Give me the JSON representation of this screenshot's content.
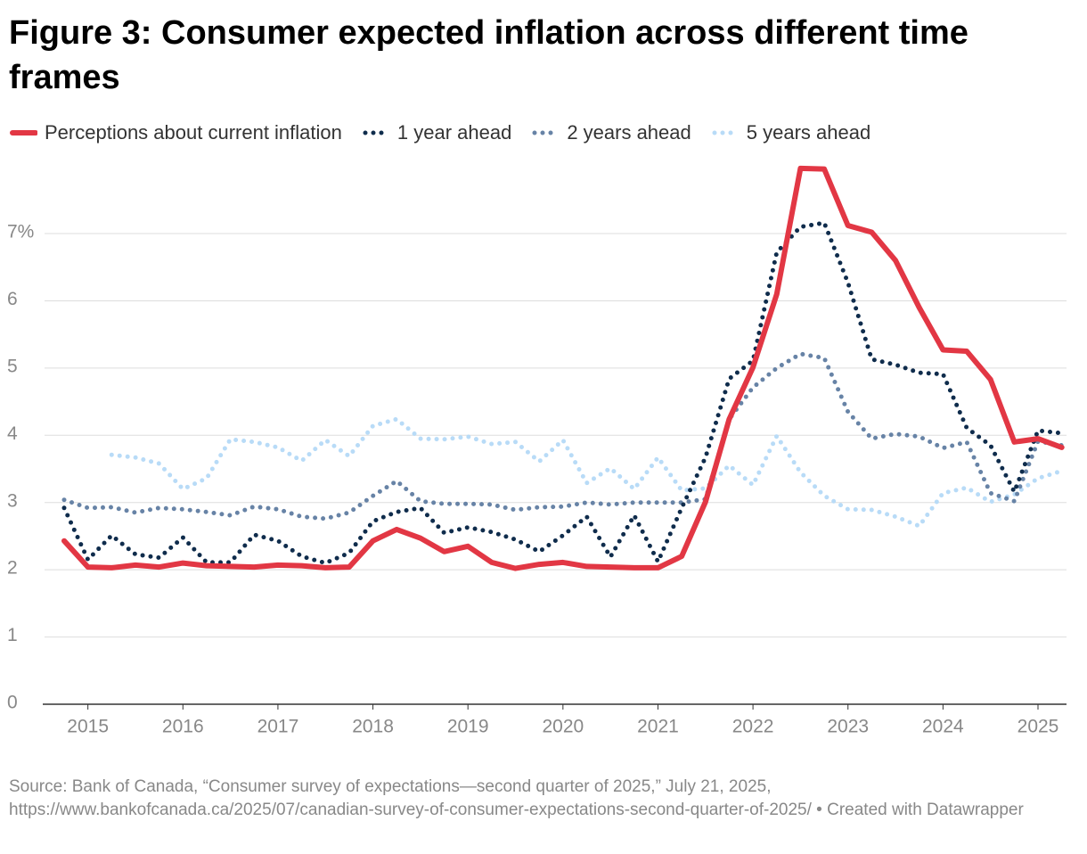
{
  "chart_data": {
    "type": "line",
    "title": "Figure 3: Consumer expected inflation across different time frames",
    "source": "Source: Bank of Canada, “Consumer survey of expectations—second quarter of 2025,” July 21, 2025, https://www.bankofcanada.ca/2025/07/canadian-survey-of-consumer-expectations-second-quarter-of-2025/ • Created with Datawrapper",
    "x": [
      2014.75,
      2015,
      2015.25,
      2015.5,
      2015.75,
      2016,
      2016.25,
      2016.5,
      2016.75,
      2017,
      2017.25,
      2017.5,
      2017.75,
      2018,
      2018.25,
      2018.5,
      2018.75,
      2019,
      2019.25,
      2019.5,
      2019.75,
      2020,
      2020.25,
      2020.5,
      2020.75,
      2021,
      2021.25,
      2021.5,
      2021.75,
      2022,
      2022.25,
      2022.5,
      2022.75,
      2023,
      2023.25,
      2023.5,
      2023.75,
      2024,
      2024.25,
      2024.5,
      2024.75,
      2025,
      2025.25
    ],
    "xlim": [
      2014.6,
      2025.3
    ],
    "xticks": [
      2015,
      2016,
      2017,
      2018,
      2019,
      2020,
      2021,
      2022,
      2023,
      2024,
      2025
    ],
    "ylim": [
      0,
      8
    ],
    "yticks": [
      0,
      1,
      2,
      3,
      4,
      5,
      6,
      {
        "value": 7,
        "label": "7%"
      }
    ],
    "grid": true,
    "series": [
      {
        "name": "Perceptions about current inflation",
        "color": "#e23744",
        "style": "solid",
        "values": [
          2.43,
          2.04,
          2.03,
          2.07,
          2.04,
          2.1,
          2.06,
          2.05,
          2.04,
          2.07,
          2.06,
          2.03,
          2.04,
          2.43,
          2.6,
          2.47,
          2.27,
          2.35,
          2.11,
          2.02,
          2.08,
          2.11,
          2.05,
          2.04,
          2.03,
          2.03,
          2.2,
          3.01,
          4.24,
          5.01,
          6.1,
          7.97,
          7.96,
          7.12,
          7.02,
          6.6,
          5.9,
          5.27,
          5.25,
          4.83,
          3.9,
          3.95,
          3.82
        ]
      },
      {
        "name": "1 year ahead",
        "color": "#0f2c4c",
        "style": "dotted",
        "values": [
          2.92,
          2.15,
          2.51,
          2.23,
          2.18,
          2.48,
          2.11,
          2.11,
          2.52,
          2.43,
          2.2,
          2.1,
          2.25,
          2.72,
          2.86,
          2.92,
          2.55,
          2.63,
          2.56,
          2.45,
          2.27,
          2.51,
          2.79,
          2.19,
          2.81,
          2.12,
          2.92,
          3.67,
          4.84,
          5.11,
          6.72,
          7.1,
          7.16,
          6.27,
          5.13,
          5.05,
          4.93,
          4.91,
          4.11,
          3.85,
          3.16,
          4.07,
          4.03
        ]
      },
      {
        "name": "2 years ahead",
        "color": "#6783a6",
        "style": "dotted",
        "values": [
          3.04,
          2.92,
          2.93,
          2.85,
          2.92,
          2.9,
          2.86,
          2.81,
          2.94,
          2.9,
          2.79,
          2.76,
          2.85,
          3.1,
          3.32,
          3.02,
          2.98,
          2.98,
          2.97,
          2.89,
          2.93,
          2.94,
          3.0,
          2.97,
          3.0,
          3.0,
          3.0,
          3.05,
          4.24,
          4.71,
          5.0,
          5.21,
          5.15,
          4.35,
          3.95,
          4.02,
          3.98,
          3.81,
          3.9,
          3.14,
          3.02,
          3.91,
          3.85
        ]
      },
      {
        "name": "5 years ahead",
        "color": "#b8dbf7",
        "style": "dotted",
        "values": [
          null,
          null,
          3.71,
          3.67,
          3.58,
          3.2,
          3.36,
          3.94,
          3.9,
          3.82,
          3.62,
          3.93,
          3.69,
          4.14,
          4.24,
          3.95,
          3.94,
          3.98,
          3.87,
          3.9,
          3.61,
          3.93,
          3.29,
          3.51,
          3.2,
          3.67,
          3.18,
          3.21,
          3.55,
          3.26,
          3.99,
          3.45,
          3.1,
          2.9,
          2.89,
          2.79,
          2.65,
          3.14,
          3.22,
          3.01,
          3.12,
          3.36,
          3.47
        ]
      }
    ]
  }
}
